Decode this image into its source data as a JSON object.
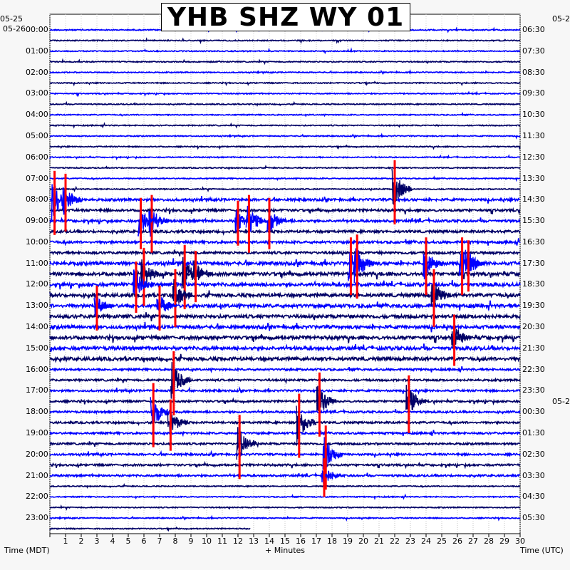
{
  "chart_data": {
    "type": "line",
    "title": "YHB SHZ WY 01",
    "start_date_left": "05-25",
    "date_left": "05-26",
    "date_right_top": "05-2",
    "date_right_mid": "05-2",
    "xlabel": "+ Minutes",
    "left_axis_label": "Time (MDT)",
    "right_axis_label": "Time (UTC)",
    "x_ticks": [
      "1",
      "2",
      "3",
      "4",
      "5",
      "6",
      "7",
      "8",
      "9",
      "10",
      "11",
      "12",
      "13",
      "14",
      "15",
      "16",
      "17",
      "18",
      "19",
      "20",
      "21",
      "22",
      "23",
      "24",
      "25",
      "26",
      "27",
      "28",
      "29",
      "30"
    ],
    "xlim": [
      0,
      30
    ],
    "rows_per_hour": 2,
    "left_hours": [
      "00:00",
      "01:00",
      "02:00",
      "03:00",
      "04:00",
      "05:00",
      "06:00",
      "07:00",
      "08:00",
      "09:00",
      "10:00",
      "11:00",
      "12:00",
      "13:00",
      "14:00",
      "15:00",
      "16:00",
      "17:00",
      "18:00",
      "19:00",
      "20:00",
      "21:00",
      "22:00",
      "23:00"
    ],
    "right_hours": [
      "06:30",
      "07:30",
      "08:30",
      "09:30",
      "10:30",
      "11:30",
      "12:30",
      "13:30",
      "14:30",
      "15:30",
      "16:30",
      "17:30",
      "18:30",
      "19:30",
      "20:30",
      "21:30",
      "22:30",
      "23:30",
      "00:30",
      "01:30",
      "02:30",
      "03:30",
      "04:30",
      "05:30"
    ],
    "trace_colors": [
      "#0000ff",
      "#000066"
    ],
    "clip_color": "#ff0000",
    "grid": true,
    "events": [
      {
        "row": 15,
        "minute": 22.0,
        "amp": 1.0
      },
      {
        "row": 16,
        "minute": 0.3,
        "amp": 1.0
      },
      {
        "row": 16,
        "minute": 1.0,
        "amp": 0.9
      },
      {
        "row": 18,
        "minute": 6.5,
        "amp": 0.9
      },
      {
        "row": 18,
        "minute": 5.8,
        "amp": 0.8
      },
      {
        "row": 18,
        "minute": 12.0,
        "amp": 0.7
      },
      {
        "row": 18,
        "minute": 12.7,
        "amp": 0.9
      },
      {
        "row": 18,
        "minute": 14.0,
        "amp": 0.8
      },
      {
        "row": 22,
        "minute": 19.2,
        "amp": 0.9
      },
      {
        "row": 22,
        "minute": 19.6,
        "amp": 1.0
      },
      {
        "row": 22,
        "minute": 24.0,
        "amp": 0.9
      },
      {
        "row": 22,
        "minute": 26.3,
        "amp": 0.9
      },
      {
        "row": 22,
        "minute": 26.7,
        "amp": 0.8
      },
      {
        "row": 23,
        "minute": 6.0,
        "amp": 0.9
      },
      {
        "row": 23,
        "minute": 8.6,
        "amp": 1.0
      },
      {
        "row": 23,
        "minute": 9.3,
        "amp": 0.8
      },
      {
        "row": 24,
        "minute": 5.5,
        "amp": 0.8
      },
      {
        "row": 25,
        "minute": 8.0,
        "amp": 0.9
      },
      {
        "row": 25,
        "minute": 24.5,
        "amp": 0.9
      },
      {
        "row": 26,
        "minute": 3.0,
        "amp": 0.7
      },
      {
        "row": 26,
        "minute": 7.0,
        "amp": 0.7
      },
      {
        "row": 29,
        "minute": 25.8,
        "amp": 0.8
      },
      {
        "row": 33,
        "minute": 7.9,
        "amp": 1.0
      },
      {
        "row": 35,
        "minute": 17.2,
        "amp": 1.0
      },
      {
        "row": 35,
        "minute": 22.9,
        "amp": 0.9
      },
      {
        "row": 36,
        "minute": 6.6,
        "amp": 1.0
      },
      {
        "row": 37,
        "minute": 15.9,
        "amp": 1.0
      },
      {
        "row": 37,
        "minute": 7.7,
        "amp": 0.8
      },
      {
        "row": 39,
        "minute": 12.1,
        "amp": 1.0
      },
      {
        "row": 40,
        "minute": 17.6,
        "amp": 1.0
      },
      {
        "row": 42,
        "minute": 17.5,
        "amp": 0.6
      }
    ]
  }
}
